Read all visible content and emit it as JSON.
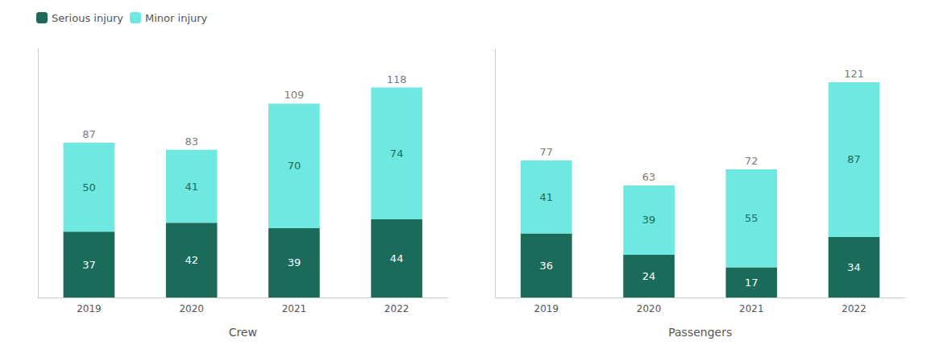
{
  "chart_data": [
    {
      "type": "bar",
      "stacked": true,
      "data_labels": true,
      "grid": false,
      "tick_labels": "x",
      "legend": "upper left",
      "xlabel": "Crew",
      "categories": [
        "2019",
        "2020",
        "2021",
        "2022"
      ],
      "series": [
        {
          "name": "Serious injury",
          "color": "#1a6b5a",
          "values": [
            37,
            42,
            39,
            44
          ]
        },
        {
          "name": "Minor injury",
          "color": "#6ee8e0",
          "values": [
            50,
            41,
            70,
            74
          ]
        }
      ],
      "totals": [
        87,
        83,
        109,
        118
      ],
      "ylim": [
        0,
        140
      ]
    },
    {
      "type": "bar",
      "stacked": true,
      "data_labels": true,
      "grid": false,
      "tick_labels": "x",
      "xlabel": "Passengers",
      "categories": [
        "2019",
        "2020",
        "2021",
        "2022"
      ],
      "series": [
        {
          "name": "Serious injury",
          "color": "#1a6b5a",
          "values": [
            36,
            24,
            17,
            34
          ]
        },
        {
          "name": "Minor injury",
          "color": "#6ee8e0",
          "values": [
            41,
            39,
            55,
            87
          ]
        }
      ],
      "totals": [
        77,
        63,
        72,
        121
      ],
      "ylim": [
        0,
        140
      ]
    }
  ]
}
